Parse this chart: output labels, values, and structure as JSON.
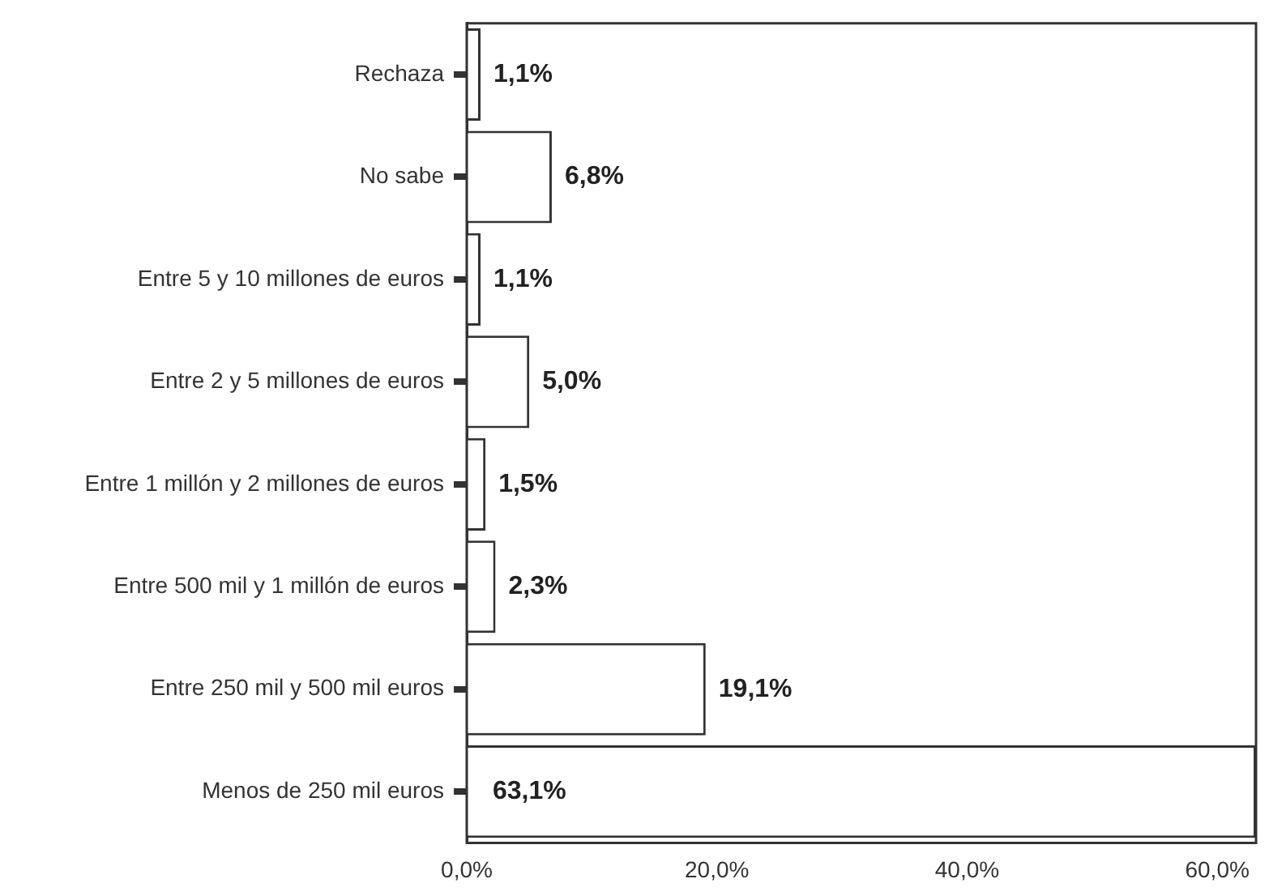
{
  "chart_data": {
    "type": "bar",
    "orientation": "horizontal",
    "categories": [
      "Rechaza",
      "No sabe",
      "Entre 5 y 10 millones de euros",
      "Entre 2 y 5 millones de euros",
      "Entre 1 millón y 2 millones de euros",
      "Entre 500 mil y 1 millón de euros",
      "Entre 250 mil y 500 mil euros",
      "Menos de 250 mil euros"
    ],
    "values": [
      1.1,
      6.8,
      1.1,
      5.0,
      1.5,
      2.3,
      19.1,
      63.1
    ],
    "value_labels": [
      "1,1%",
      "6,8%",
      "1,1%",
      "5,0%",
      "1,5%",
      "2,3%",
      "19,1%",
      "63,1%"
    ],
    "color": "#ffffff",
    "xlim": [
      0,
      63.1
    ],
    "xticks": [
      {
        "value": 0,
        "label": "0,0%"
      },
      {
        "value": 20,
        "label": "20,0%"
      },
      {
        "value": 40,
        "label": "40,0%"
      },
      {
        "value": 60,
        "label": "60,0%"
      }
    ],
    "grid": false,
    "legend": false
  }
}
